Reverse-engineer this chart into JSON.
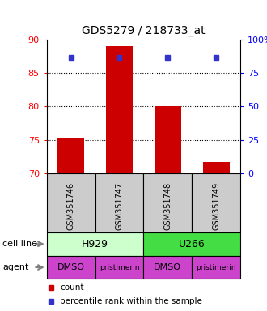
{
  "title": "GDS5279 / 218733_at",
  "samples": [
    "GSM351746",
    "GSM351747",
    "GSM351748",
    "GSM351749"
  ],
  "bar_values": [
    75.3,
    89.0,
    80.0,
    71.7
  ],
  "bar_bottom": 70,
  "percentile_values": [
    86.7,
    86.7,
    86.7,
    86.4
  ],
  "percentile_scale": [
    0,
    25,
    50,
    75,
    100
  ],
  "left_yticks": [
    70,
    75,
    80,
    85,
    90
  ],
  "left_ylim": [
    70,
    90
  ],
  "right_ylim": [
    0,
    100
  ],
  "dotted_lines": [
    75,
    80,
    85
  ],
  "bar_color": "#cc0000",
  "dot_color": "#3333cc",
  "cell_line_labels": [
    "H929",
    "U266"
  ],
  "cell_line_spans": [
    2,
    2
  ],
  "cell_line_colors": [
    "#ccffcc",
    "#44dd44"
  ],
  "agent_labels": [
    "DMSO",
    "pristimerin",
    "DMSO",
    "pristimerin"
  ],
  "agent_color": "#cc44cc",
  "sample_box_color": "#cccccc",
  "legend_count_color": "#cc0000",
  "legend_pct_color": "#3333cc",
  "fig_width": 3.3,
  "fig_height": 3.84,
  "dpi": 100
}
